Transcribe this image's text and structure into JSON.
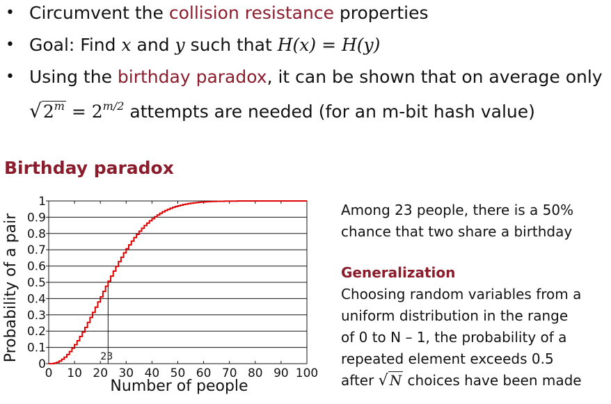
{
  "bullets": [
    {
      "prefix": "Circumvent the ",
      "highlight": "collision resistance",
      "suffix": " properties"
    },
    {
      "text_a": "Goal: Find ",
      "var_x": "x",
      "text_and": " and ",
      "var_y": "y",
      "text_b": " such that ",
      "eq": "H(x) = H(y)"
    },
    {
      "prefix": "Using the ",
      "highlight": "birthday paradox",
      "suffix": ", it can be shown that on average only",
      "sqrt_arg": "2",
      "sqrt_exp": "m",
      "equals": " = 2",
      "pow_exp": "m/2",
      "tail": " attempts are needed (for an m-bit hash value)"
    }
  ],
  "section_title": "Birthday paradox",
  "right": {
    "line1": "Among 23 people, there is a 50%",
    "line2": "chance that two share a birthday",
    "gen_title": "Generalization",
    "gen_lines": [
      "Choosing random variables from a",
      "uniform distribution in the range",
      "of 0 to N – 1, the probability of a",
      "repeated element exceeds 0.5"
    ],
    "gen_last_prefix": "after ",
    "gen_last_sqrt": "N",
    "gen_last_suffix": " choices have been made"
  },
  "chart_data": {
    "type": "line",
    "xlabel": "Number of people",
    "ylabel": "Probability of a pair",
    "xlim": [
      0,
      100
    ],
    "ylim": [
      0,
      1
    ],
    "x_ticks": [
      0,
      10,
      20,
      30,
      40,
      50,
      60,
      70,
      80,
      90,
      100
    ],
    "y_ticks": [
      0,
      0.1,
      0.2,
      0.3,
      0.4,
      0.5,
      0.6,
      0.7,
      0.8,
      0.9,
      1
    ],
    "y_tick_labels": [
      "0",
      "0.1",
      "0.2",
      "0.3",
      "0.4",
      "0.5",
      "0.6",
      "0.7",
      "0.8",
      "0.9",
      "1"
    ],
    "grid": "horizontal",
    "series_color": "#dd0000",
    "step": true,
    "annotation": {
      "x": 23,
      "y": 0.5,
      "label": "23"
    },
    "series": [
      {
        "x": [
          0,
          1,
          2,
          3,
          4,
          5,
          6,
          7,
          8,
          9,
          10,
          11,
          12,
          13,
          14,
          15,
          16,
          17,
          18,
          19,
          20,
          21,
          22,
          23,
          24,
          25,
          26,
          27,
          28,
          29,
          30,
          31,
          32,
          33,
          34,
          35,
          36,
          37,
          38,
          39,
          40,
          41,
          42,
          43,
          44,
          45,
          46,
          47,
          48,
          49,
          50,
          51,
          52,
          53,
          54,
          55,
          56,
          57,
          58,
          59,
          60,
          61,
          62,
          63,
          64,
          65,
          66,
          67,
          68,
          69,
          70,
          71,
          72,
          73,
          74,
          75,
          76,
          77,
          78,
          79,
          80,
          81,
          82,
          83,
          84,
          85,
          86,
          87,
          88,
          89,
          90,
          91,
          92,
          93,
          94,
          95,
          96,
          97,
          98,
          99,
          100
        ],
        "y": [
          0,
          0,
          0.003,
          0.008,
          0.016,
          0.027,
          0.04,
          0.056,
          0.074,
          0.095,
          0.117,
          0.141,
          0.167,
          0.194,
          0.223,
          0.253,
          0.284,
          0.315,
          0.347,
          0.379,
          0.411,
          0.444,
          0.476,
          0.507,
          0.538,
          0.569,
          0.598,
          0.627,
          0.654,
          0.681,
          0.706,
          0.73,
          0.753,
          0.775,
          0.795,
          0.814,
          0.832,
          0.849,
          0.864,
          0.878,
          0.891,
          0.903,
          0.914,
          0.924,
          0.933,
          0.941,
          0.948,
          0.955,
          0.961,
          0.966,
          0.97,
          0.974,
          0.978,
          0.981,
          0.984,
          0.986,
          0.988,
          0.99,
          0.992,
          0.993,
          0.994,
          0.995,
          0.996,
          0.997,
          0.997,
          0.998,
          0.998,
          0.998,
          0.999,
          0.999,
          0.999,
          0.999,
          0.999,
          1,
          1,
          1,
          1,
          1,
          1,
          1,
          1,
          1,
          1,
          1,
          1,
          1,
          1,
          1,
          1,
          1,
          1,
          1,
          1,
          1,
          1,
          1,
          1,
          1,
          1,
          1,
          1
        ]
      }
    ]
  }
}
